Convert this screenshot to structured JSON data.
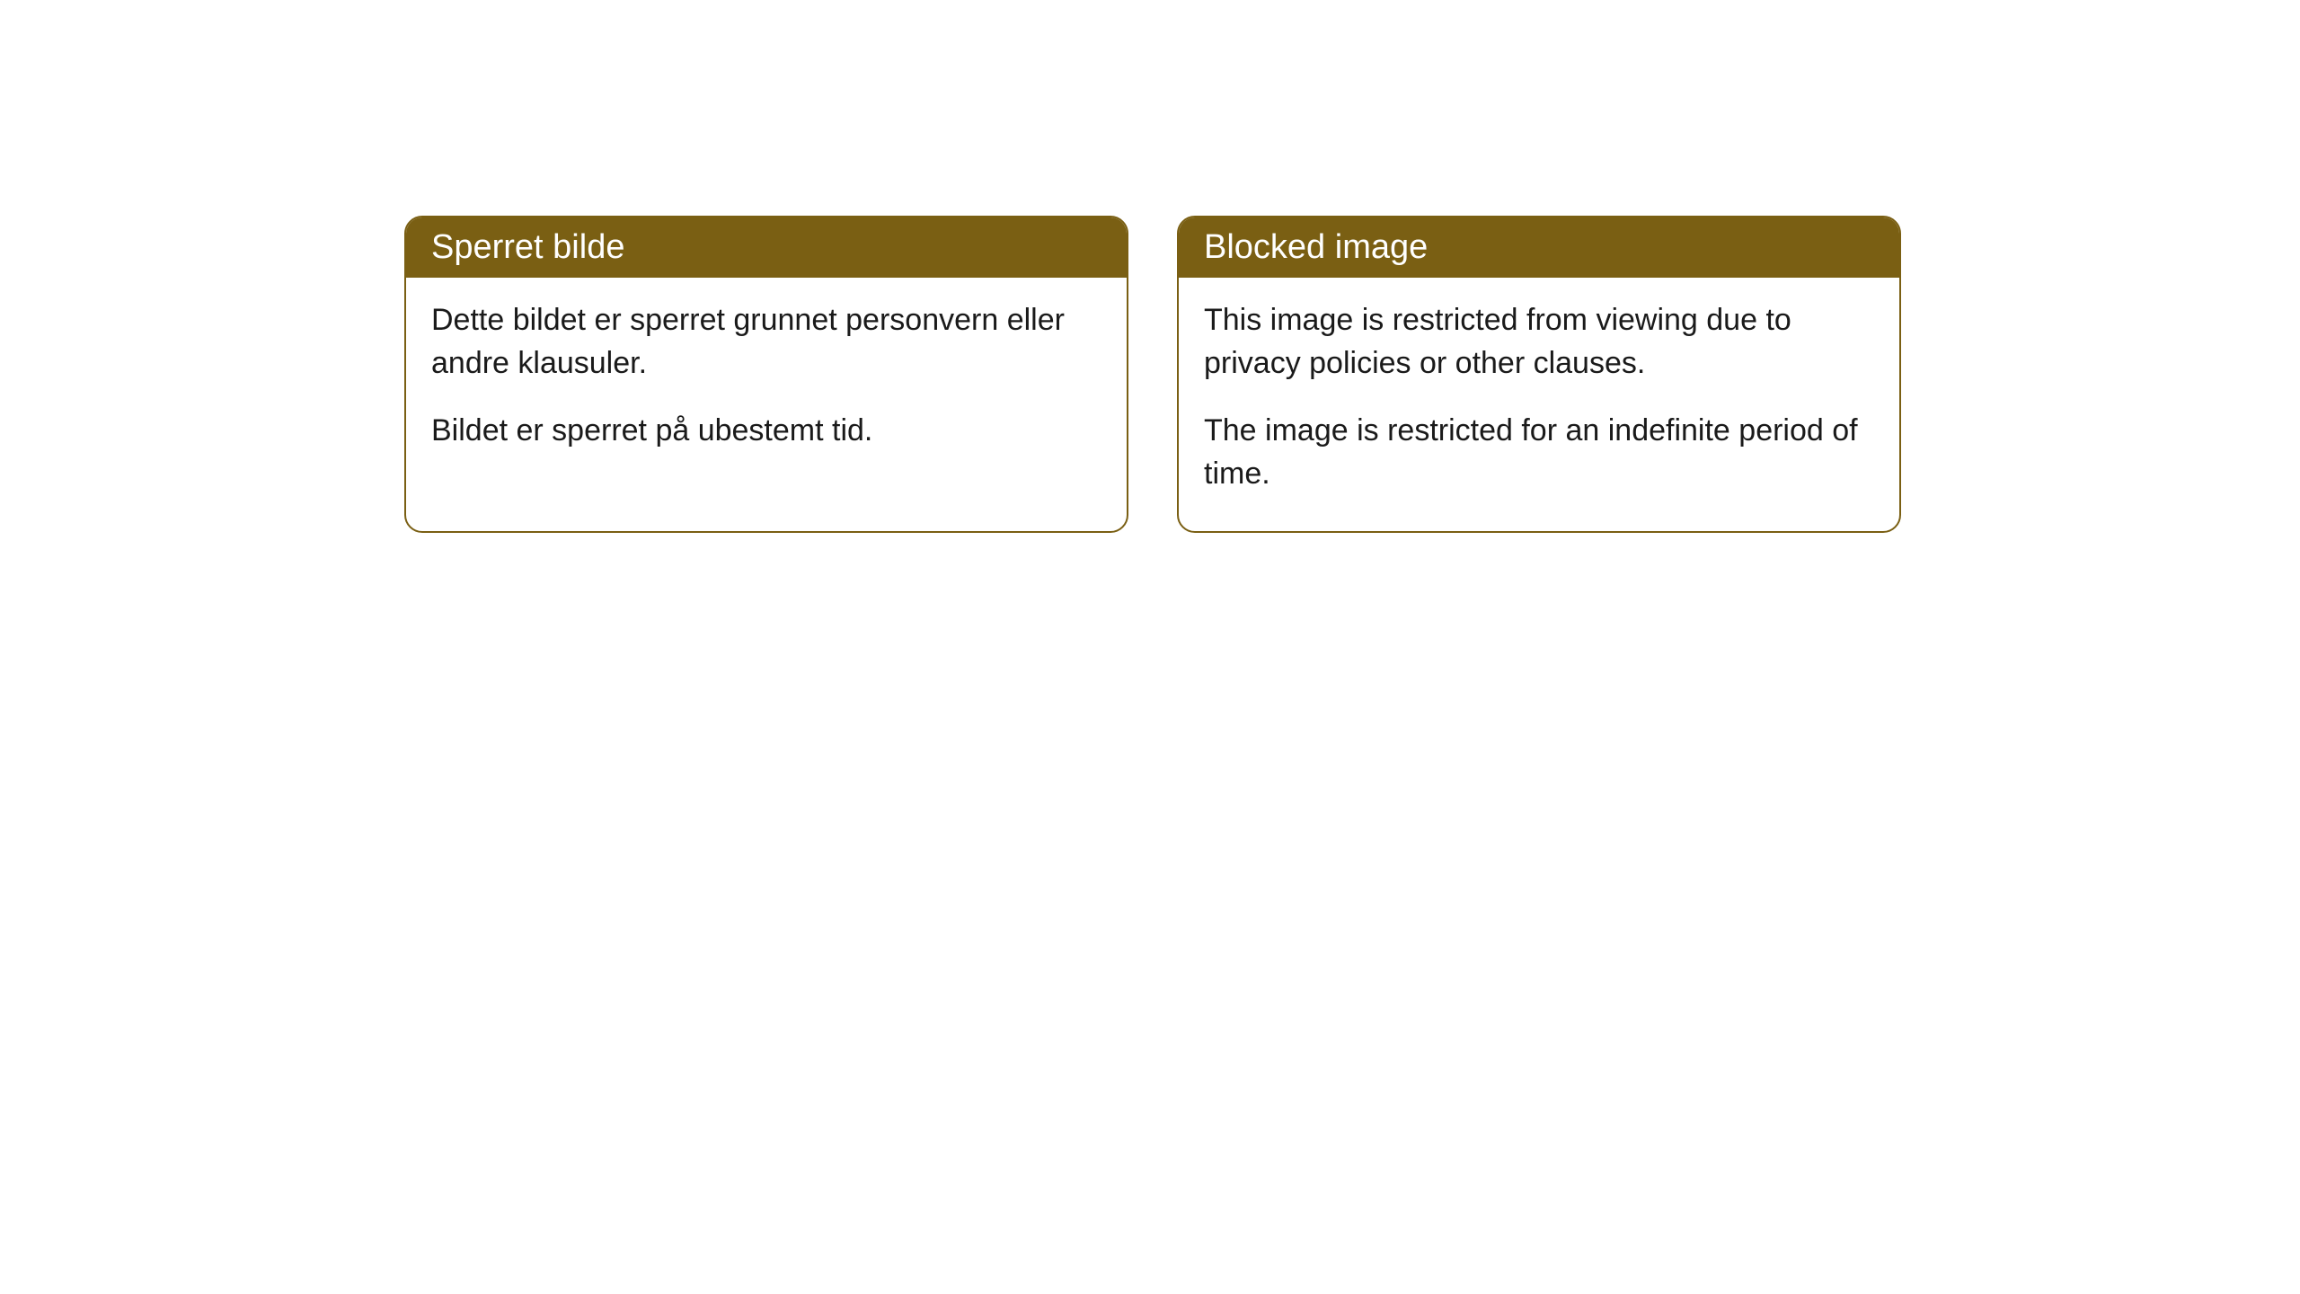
{
  "cards": [
    {
      "title": "Sperret bilde",
      "paragraph1": "Dette bildet er sperret grunnet personvern eller andre klausuler.",
      "paragraph2": "Bildet er sperret på ubestemt tid."
    },
    {
      "title": "Blocked image",
      "paragraph1": "This image is restricted from viewing due to privacy policies or other clauses.",
      "paragraph2": "The image is restricted for an indefinite period of time."
    }
  ],
  "styling": {
    "header_background": "#7a5f13",
    "header_text_color": "#ffffff",
    "border_color": "#7a5f13",
    "body_background": "#ffffff",
    "body_text_color": "#1a1a1a",
    "border_radius": "20px",
    "title_fontsize": 38,
    "body_fontsize": 34
  }
}
